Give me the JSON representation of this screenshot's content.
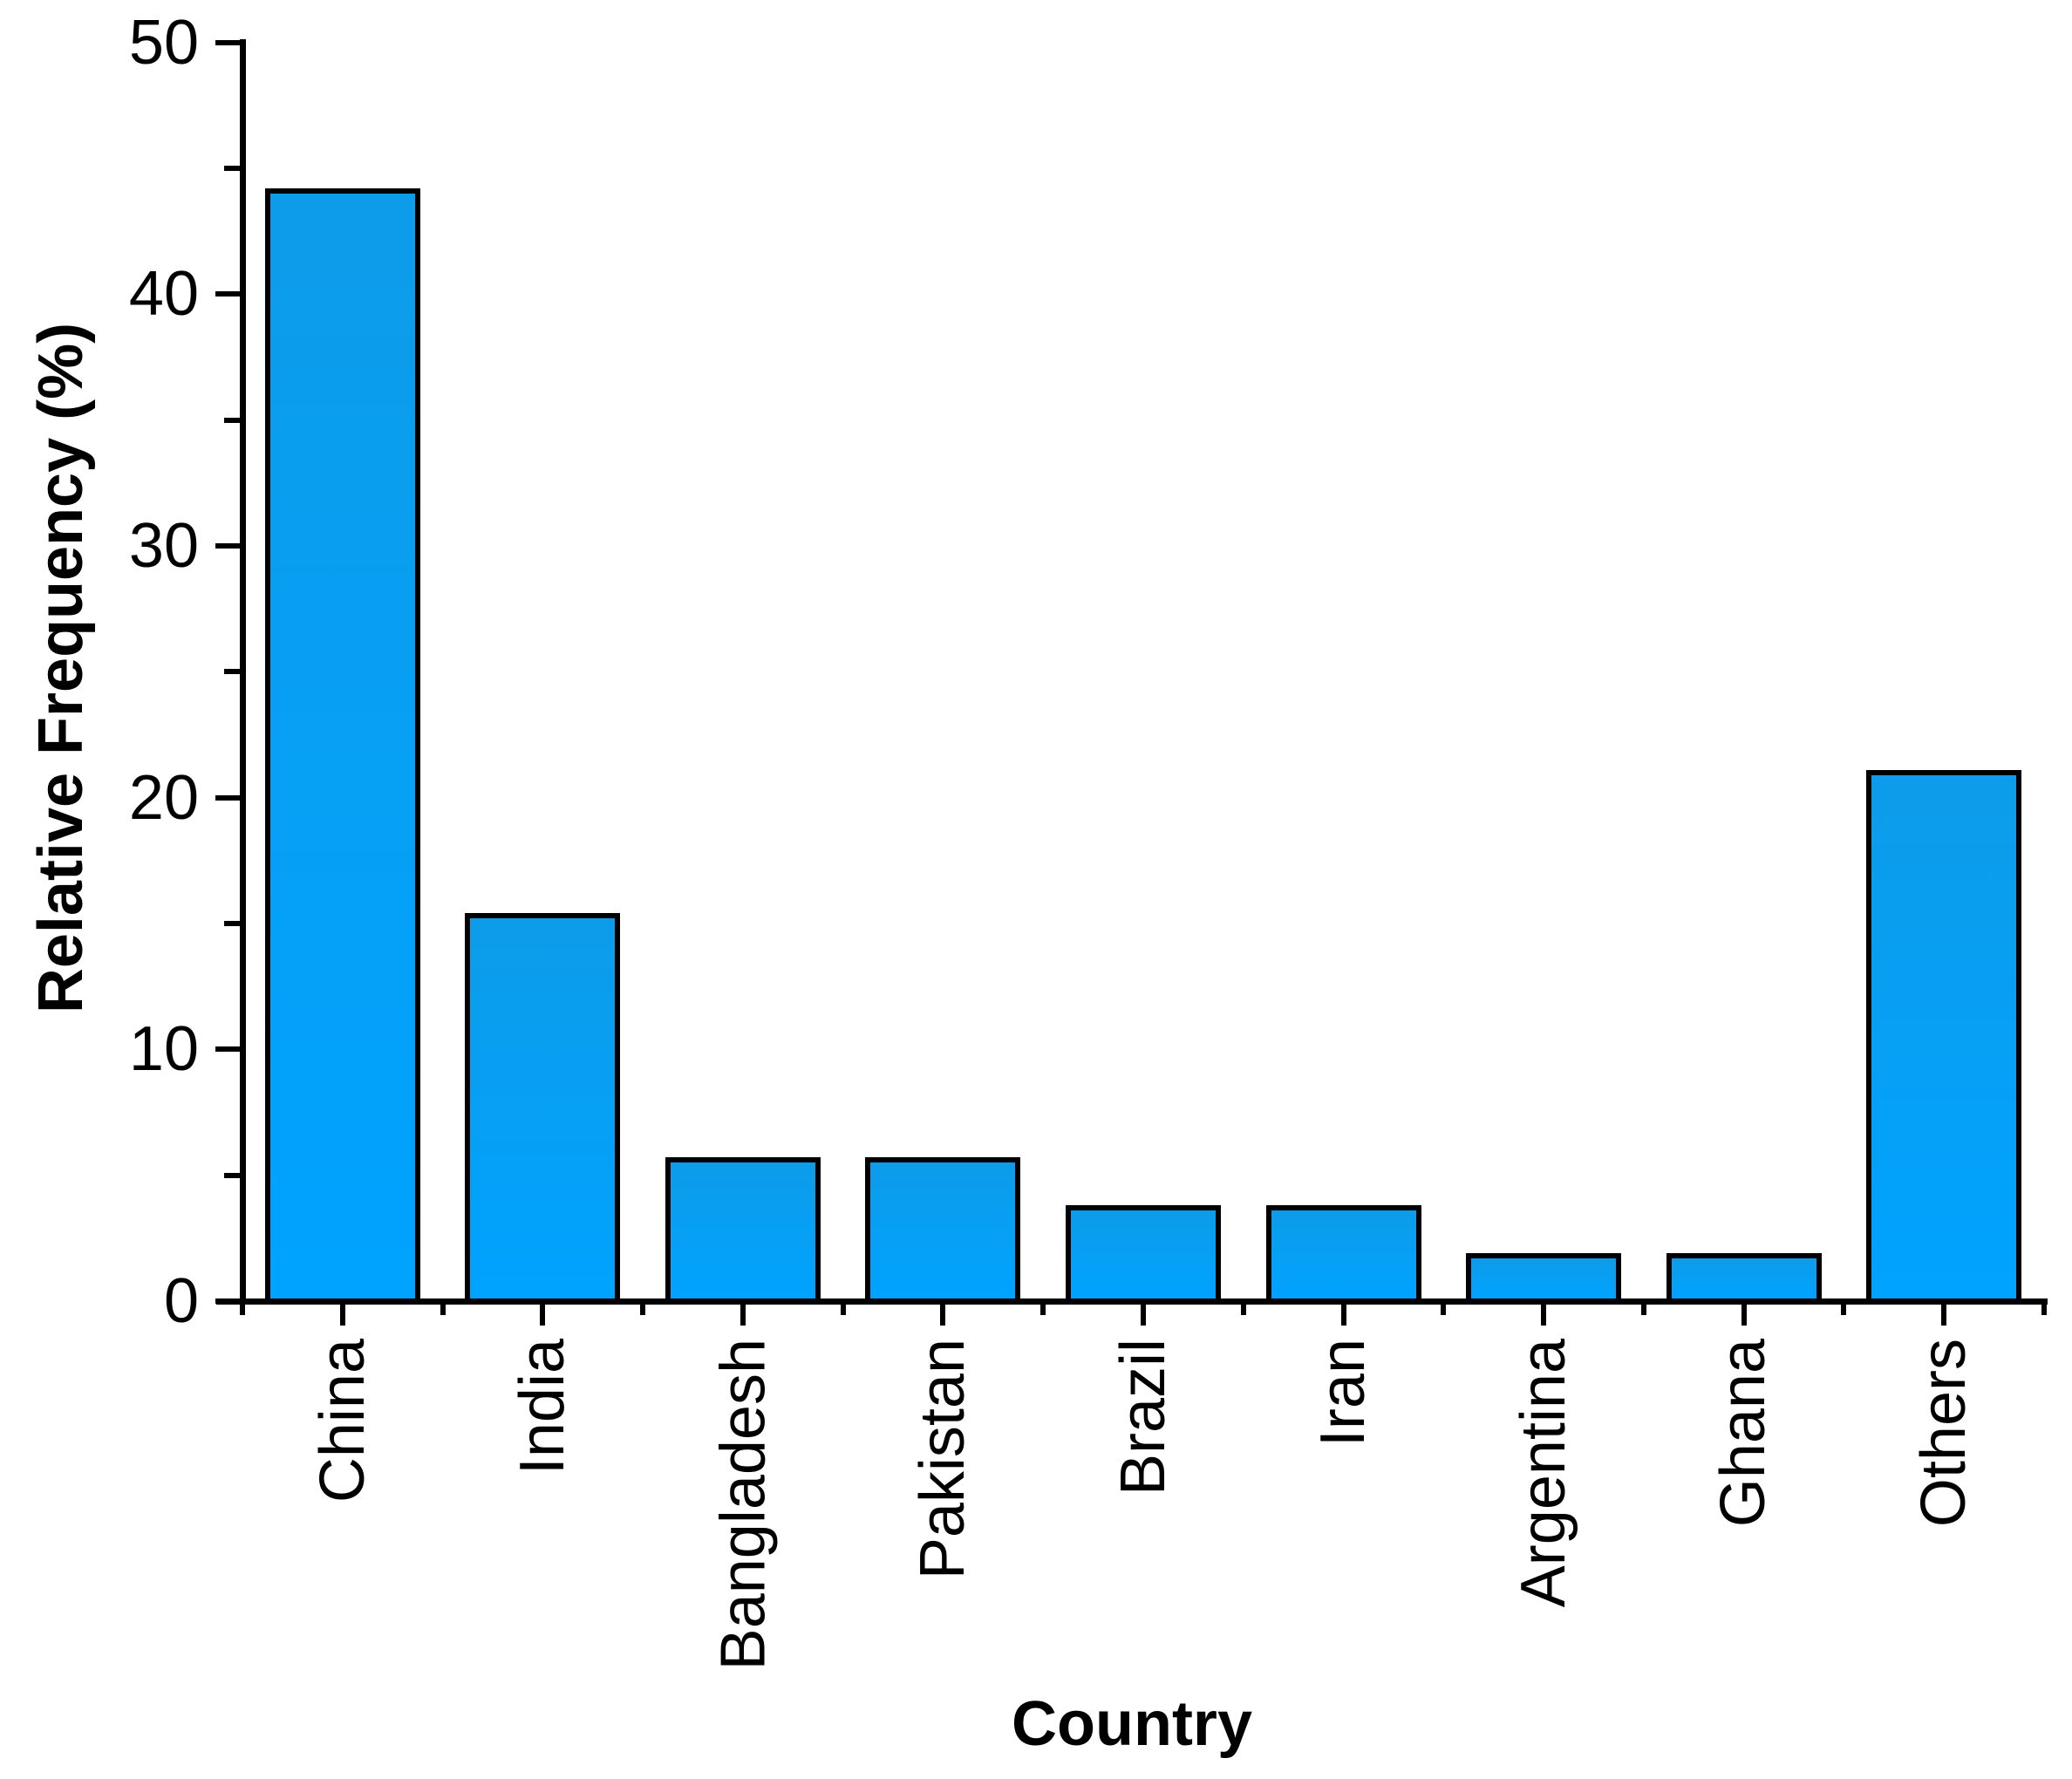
{
  "chart_data": {
    "type": "bar",
    "title": "",
    "categories": [
      "China",
      "India",
      "Bangladesh",
      "Pakistan",
      "Brazil",
      "Iran",
      "Argentina",
      "Ghana",
      "Others"
    ],
    "values": [
      44.2,
      15.4,
      5.7,
      5.7,
      3.8,
      3.8,
      1.9,
      1.9,
      21.1
    ],
    "xlabel": "Country",
    "ylabel": "Relative Frequency (%)",
    "ylim": [
      0,
      50
    ],
    "y_major_ticks": [
      0,
      10,
      20,
      30,
      40,
      50
    ],
    "y_minor_ticks": [
      5,
      15,
      25,
      35,
      45
    ],
    "grid": false,
    "legend_position": "none",
    "bar_fill_gradient_top": "#0d9ce9",
    "bar_fill_gradient_bottom": "#00a3ff",
    "bar_border_color": "#000000",
    "axis_color": "#000000",
    "text_color": "#000000",
    "background_color": "#ffffff"
  }
}
